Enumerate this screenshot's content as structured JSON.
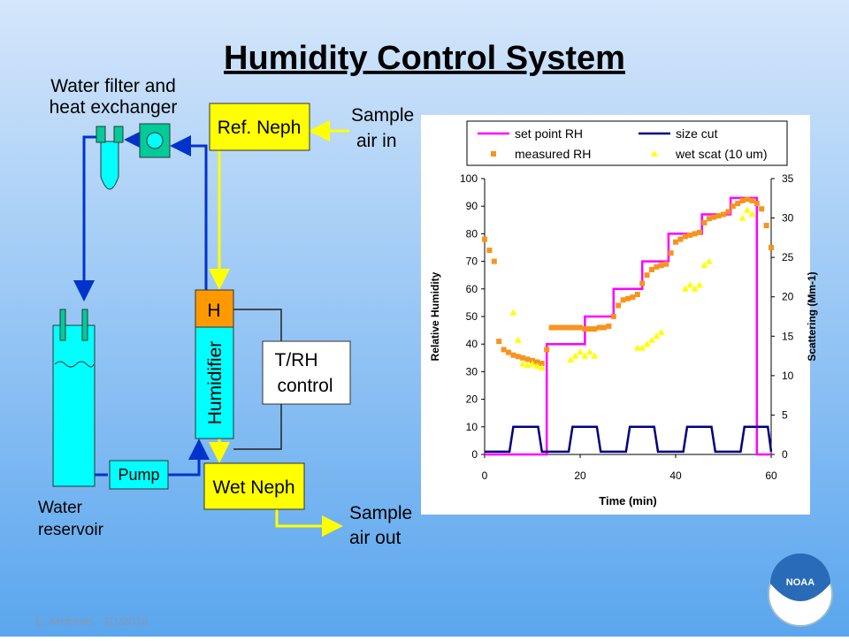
{
  "title": "Humidity Control System",
  "diagram": {
    "filter_label": [
      "Water filter and",
      "heat exchanger"
    ],
    "ref_neph": "Ref. Neph",
    "sample_in": [
      "Sample",
      "air in"
    ],
    "heater": "H",
    "humidifier": "Humidifier",
    "control": [
      "T/RH",
      "control"
    ],
    "pump": "Pump",
    "wet_neph": "Wet Neph",
    "sample_out": [
      "Sample",
      "air out"
    ],
    "reservoir": [
      "Water",
      "reservoir"
    ]
  },
  "footer": "E. Andrews   2/1/2016",
  "logo": "NOAA",
  "chart_data": {
    "type": "line",
    "xlabel": "Time (min)",
    "ylabel": "Relative Humidity",
    "y2label": "Scattering (Mm-1)",
    "xlim": [
      0,
      60
    ],
    "xticks": [
      0,
      20,
      40,
      60
    ],
    "ylim": [
      0,
      100
    ],
    "yticks": [
      0,
      10,
      20,
      30,
      40,
      50,
      60,
      70,
      80,
      90,
      100
    ],
    "y2lim": [
      0,
      35
    ],
    "y2ticks": [
      0,
      5,
      10,
      15,
      20,
      25,
      30,
      35
    ],
    "series": [
      {
        "name": "set point RH",
        "color": "#ff00ff",
        "mark": "line",
        "x": [
          0,
          13,
          13,
          21,
          21,
          27,
          27,
          33,
          33,
          38.5,
          38.5,
          45.5,
          45.5,
          51.5,
          51.5,
          57,
          57,
          60
        ],
        "values": [
          0,
          0,
          40,
          40,
          50,
          50,
          60,
          60,
          70,
          70,
          80,
          80,
          87,
          87,
          93,
          93,
          0,
          0
        ]
      },
      {
        "name": "size cut",
        "color": "#000080",
        "mark": "line",
        "x": [
          0,
          5.2,
          6,
          11.2,
          12,
          17.6,
          18.4,
          23.5,
          24.3,
          29.6,
          30.4,
          35.5,
          36.3,
          41.6,
          42.4,
          47.5,
          48.3,
          53.6,
          54.4,
          59.3,
          60
        ],
        "values": [
          1,
          1,
          10,
          10,
          1,
          1,
          10,
          10,
          1,
          1,
          10,
          10,
          1,
          1,
          10,
          10,
          1,
          1,
          10,
          10,
          1
        ]
      },
      {
        "name": "measured RH",
        "color": "#f7941d",
        "mark": "square",
        "x": [
          0,
          1,
          2,
          3,
          4,
          5,
          6,
          7,
          8,
          9,
          10,
          11,
          12,
          13,
          14,
          15,
          16,
          17,
          18,
          19,
          20,
          21,
          22,
          23,
          24,
          25,
          26,
          27,
          28,
          29,
          30,
          31,
          32,
          33,
          34,
          35,
          36,
          37,
          38,
          39,
          40,
          41,
          42,
          43,
          44,
          45,
          46,
          47,
          48,
          49,
          50,
          51,
          52,
          53,
          54,
          55,
          56,
          57,
          58,
          59,
          60
        ],
        "values": [
          78,
          74,
          70,
          41,
          38,
          37,
          36,
          35.5,
          35,
          34.5,
          34,
          33.5,
          33,
          38,
          46,
          46,
          46,
          46,
          46,
          46,
          46,
          45.5,
          45.5,
          45.5,
          46,
          46,
          46.5,
          50,
          54,
          56,
          56.5,
          57,
          58,
          62,
          65,
          67,
          68,
          68.5,
          69,
          73,
          77,
          78,
          79,
          79.5,
          80,
          80.5,
          84,
          85.5,
          86,
          86.5,
          87,
          88,
          90,
          91,
          92,
          92.5,
          92,
          91,
          89,
          83,
          75
        ]
      },
      {
        "name": "wet scat (10 um)",
        "color": "#ffff00",
        "mark": "triangle",
        "axis": "y2",
        "x": [
          6,
          7,
          8,
          9,
          10,
          11,
          12,
          18,
          19,
          20,
          21,
          22,
          23,
          32,
          33,
          34,
          35,
          36,
          37,
          42,
          43,
          44,
          45,
          46,
          47,
          54,
          55,
          56
        ],
        "values": [
          18,
          14.5,
          11.5,
          11.3,
          11.5,
          11.2,
          11,
          12,
          12.5,
          13,
          12.5,
          13,
          12.5,
          13.5,
          13.5,
          14,
          14.5,
          15,
          15.5,
          21,
          21.5,
          21,
          21.5,
          24,
          24.5,
          30,
          31,
          30.5
        ]
      }
    ]
  }
}
